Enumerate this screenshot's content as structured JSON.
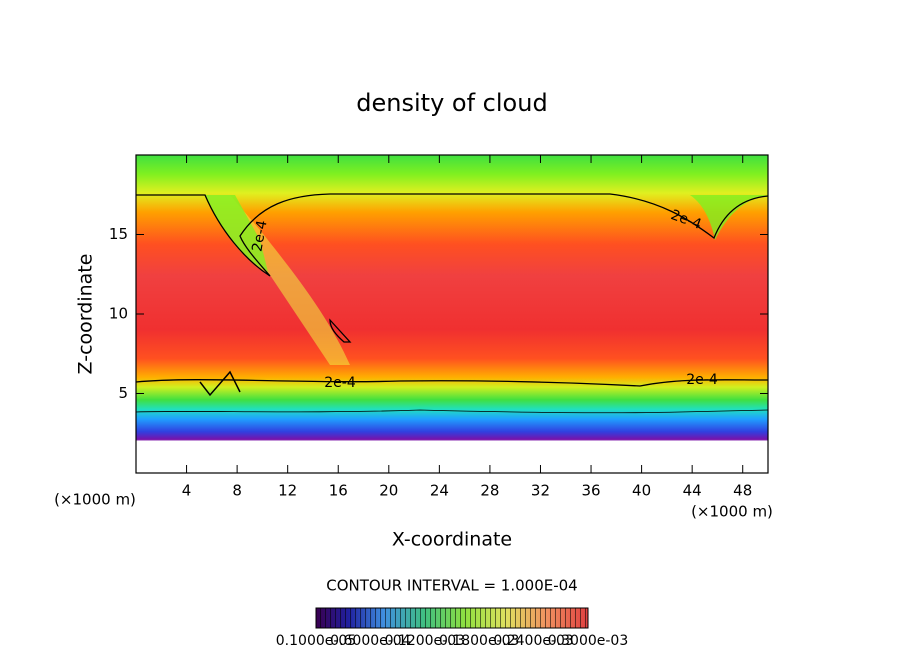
{
  "chart_data": {
    "type": "contour",
    "title": "density of cloud",
    "x_label": "X-coordinate",
    "y_label": "Z-coordinate",
    "x_unit": "(×1000 m)",
    "y_unit": "(×1000 m)",
    "xlim": [
      0,
      50
    ],
    "xticks": [
      4,
      8,
      12,
      16,
      20,
      24,
      28,
      32,
      36,
      40,
      44,
      48
    ],
    "ylim": [
      0,
      20
    ],
    "yticks": [
      5,
      10,
      15
    ],
    "contour_labels": [
      "2e-4",
      "2e-4",
      "2e-4",
      "2e-4"
    ],
    "contour_interval": "CONTOUR INTERVAL = 1.000E-04",
    "colorbar_labels": [
      "0.1000e-05",
      "0.6000e-04",
      "0.1200e-03",
      "0.1800e-03",
      "0.2400e-03",
      "0.3000e-03"
    ]
  }
}
